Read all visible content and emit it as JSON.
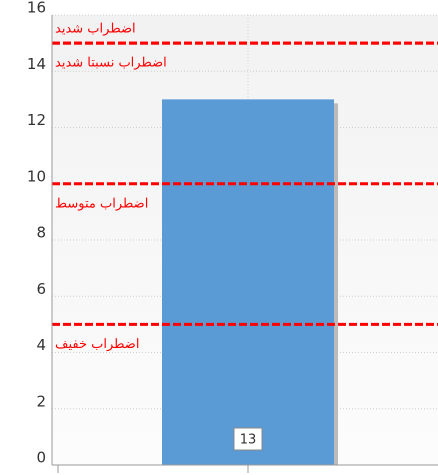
{
  "chart_data": {
    "type": "bar",
    "categories": [
      null
    ],
    "values": [
      13
    ],
    "color": "#5b9bd5",
    "ylim": [
      0,
      16
    ],
    "yticks": [
      0,
      2,
      4,
      6,
      8,
      10,
      12,
      14,
      16
    ],
    "grid": true,
    "annotations": [
      {
        "value": 15,
        "label": "اضطراب شدید",
        "label_side": "above",
        "color": "#ff0000"
      },
      {
        "value": 15,
        "label": "اضطراب نسبتا شدید",
        "label_side": "below",
        "color": "#ff0000"
      },
      {
        "value": 10,
        "label": "اضطراب متوسط",
        "label_side": "below",
        "color": "#ff0000"
      },
      {
        "value": 5,
        "label": "اضطراب خفیف",
        "label_side": "below",
        "color": "#ff0000"
      }
    ]
  }
}
